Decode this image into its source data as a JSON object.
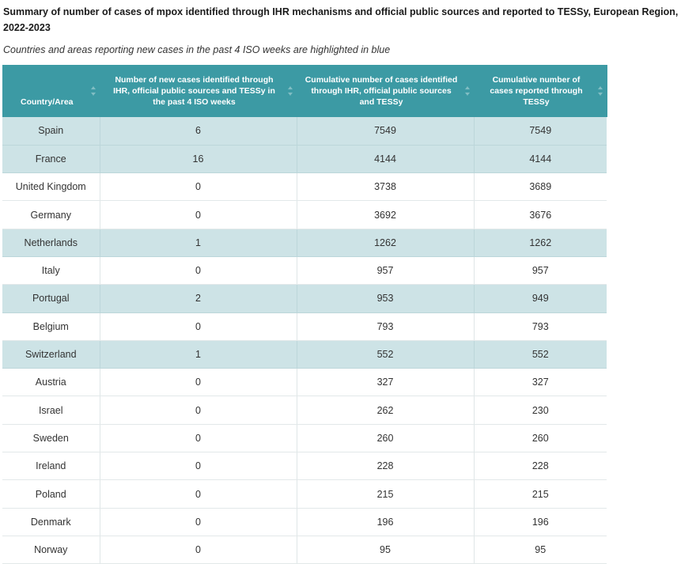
{
  "header": {
    "title": "Summary of number of cases of mpox identified through IHR mechanisms and official public sources and reported to TESSy, European Region, 2022-2023",
    "subtitle": "Countries and areas reporting new cases in the past 4 ISO weeks are highlighted in blue"
  },
  "table": {
    "columns": [
      "Country/Area",
      "Number of new cases identified through IHR, official public sources and TESSy in the past 4 ISO weeks",
      "Cumulative number of cases identified through IHR, official public sources and TESSy",
      "Cumulative number of cases reported through TESSy"
    ],
    "highlight_color": "#cde3e6",
    "header_color": "#3c9aa4",
    "rows": [
      {
        "country": "Spain",
        "new": "6",
        "cum_ihr": "7549",
        "cum_tessy": "7549",
        "highlight": true
      },
      {
        "country": "France",
        "new": "16",
        "cum_ihr": "4144",
        "cum_tessy": "4144",
        "highlight": true
      },
      {
        "country": "United Kingdom",
        "new": "0",
        "cum_ihr": "3738",
        "cum_tessy": "3689",
        "highlight": false
      },
      {
        "country": "Germany",
        "new": "0",
        "cum_ihr": "3692",
        "cum_tessy": "3676",
        "highlight": false
      },
      {
        "country": "Netherlands",
        "new": "1",
        "cum_ihr": "1262",
        "cum_tessy": "1262",
        "highlight": true
      },
      {
        "country": "Italy",
        "new": "0",
        "cum_ihr": "957",
        "cum_tessy": "957",
        "highlight": false
      },
      {
        "country": "Portugal",
        "new": "2",
        "cum_ihr": "953",
        "cum_tessy": "949",
        "highlight": true
      },
      {
        "country": "Belgium",
        "new": "0",
        "cum_ihr": "793",
        "cum_tessy": "793",
        "highlight": false
      },
      {
        "country": "Switzerland",
        "new": "1",
        "cum_ihr": "552",
        "cum_tessy": "552",
        "highlight": true
      },
      {
        "country": "Austria",
        "new": "0",
        "cum_ihr": "327",
        "cum_tessy": "327",
        "highlight": false
      },
      {
        "country": "Israel",
        "new": "0",
        "cum_ihr": "262",
        "cum_tessy": "230",
        "highlight": false
      },
      {
        "country": "Sweden",
        "new": "0",
        "cum_ihr": "260",
        "cum_tessy": "260",
        "highlight": false
      },
      {
        "country": "Ireland",
        "new": "0",
        "cum_ihr": "228",
        "cum_tessy": "228",
        "highlight": false
      },
      {
        "country": "Poland",
        "new": "0",
        "cum_ihr": "215",
        "cum_tessy": "215",
        "highlight": false
      },
      {
        "country": "Denmark",
        "new": "0",
        "cum_ihr": "196",
        "cum_tessy": "196",
        "highlight": false
      },
      {
        "country": "Norway",
        "new": "0",
        "cum_ihr": "95",
        "cum_tessy": "95",
        "highlight": false
      }
    ]
  }
}
